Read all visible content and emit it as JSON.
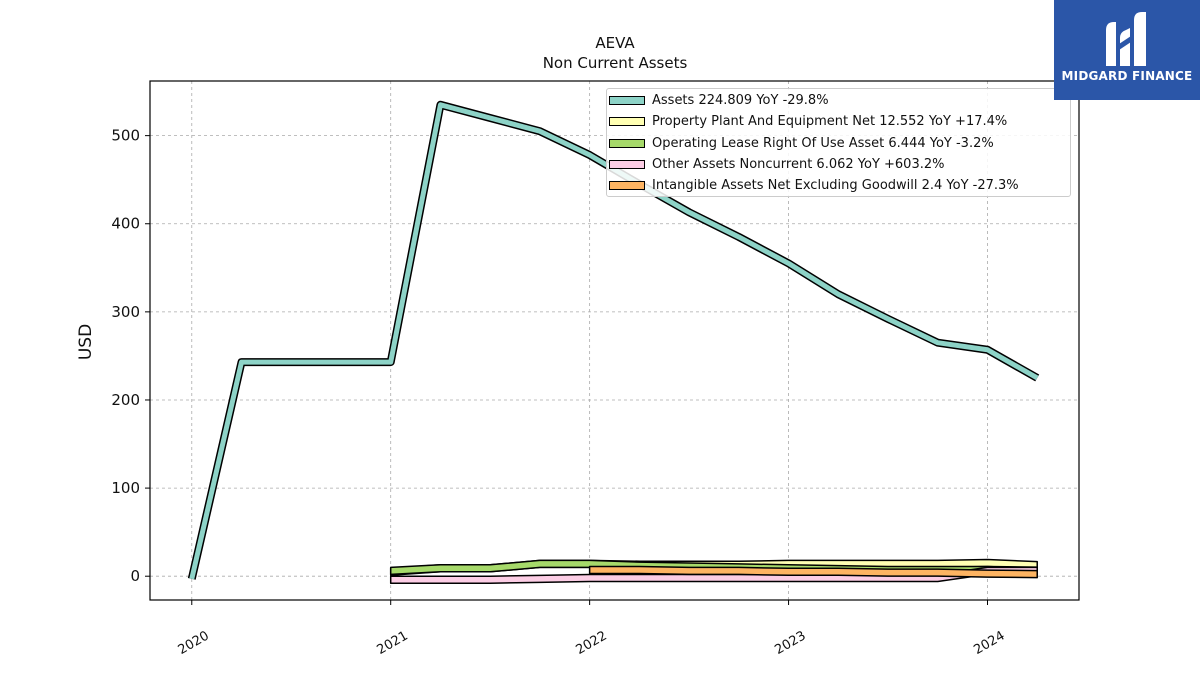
{
  "logo": {
    "text": "MIDGARD FINANCE"
  },
  "chart_data": {
    "type": "area",
    "title": "AEVA",
    "subtitle": "Non Current  Assets",
    "ylabel": "USD",
    "xlabel": "",
    "ylim": [
      -27,
      562
    ],
    "xlim": [
      2019.79,
      2024.46
    ],
    "x_ticks": [
      2020,
      2021,
      2022,
      2023,
      2024
    ],
    "x_tick_labels": [
      "2020",
      "2021",
      "2022",
      "2023",
      "2024"
    ],
    "y_ticks": [
      0,
      100,
      200,
      300,
      400,
      500
    ],
    "y_tick_labels": [
      "0",
      "100",
      "200",
      "300",
      "400",
      "500"
    ],
    "grid": true,
    "legend_position": "top-right",
    "series": [
      {
        "name": "Assets",
        "legend": "Assets  224.809 YoY -29.8%",
        "color": "#8dd3c7",
        "x": [
          2020.0,
          2020.25,
          2021.0,
          2021.25,
          2021.5,
          2021.75,
          2022.0,
          2022.25,
          2022.5,
          2022.75,
          2023.0,
          2023.25,
          2023.5,
          2023.75,
          2024.0,
          2024.25
        ],
        "y": [
          -3,
          243,
          243,
          535,
          520,
          505,
          478,
          445,
          413,
          385,
          355,
          320,
          292,
          265,
          257,
          225
        ]
      },
      {
        "name": "Property Plant And Equipment Net",
        "legend": "Property Plant And Equipment Net  12.552 YoY +17.4%",
        "color": "#ffffb3",
        "x": [
          2021.0,
          2021.25,
          2021.5,
          2021.75,
          2022.0,
          2022.25,
          2022.5,
          2022.75,
          2023.0,
          2023.25,
          2023.5,
          2023.75,
          2024.0,
          2024.25
        ],
        "y": [
          5,
          9,
          9,
          14,
          14,
          13,
          13,
          13,
          14,
          14,
          14,
          14,
          15,
          12.6
        ]
      },
      {
        "name": "Operating Lease Right Of Use Asset",
        "legend": "Operating Lease Right Of Use Asset  6.444 YoY -3.2%",
        "color": "#a6d96a",
        "x": [
          2021.0,
          2021.25,
          2021.5,
          2021.75,
          2022.0,
          2022.25,
          2022.5,
          2022.75,
          2023.0,
          2023.25,
          2023.5,
          2023.75,
          2024.0,
          2024.25
        ],
        "y": [
          6,
          9,
          9,
          14,
          14,
          12,
          11,
          10,
          9,
          8,
          7,
          7,
          7,
          6.4
        ]
      },
      {
        "name": "Other Assets Noncurrent",
        "legend": "Other Assets Noncurrent  6.062 YoY +603.2%",
        "color": "#fccde5",
        "x": [
          2021.0,
          2021.25,
          2021.5,
          2021.75,
          2022.0,
          2022.25,
          2022.5,
          2022.75,
          2023.0,
          2023.25,
          2023.5,
          2023.75,
          2024.0,
          2024.25
        ],
        "y": [
          -4,
          -4,
          -4,
          -3,
          -2,
          -2,
          -2,
          -2,
          -2,
          -2,
          -2,
          -2,
          6,
          6.1
        ]
      },
      {
        "name": "Intangible Assets Net Excluding Goodwill",
        "legend": "Intangible Assets Net Excluding Goodwill  2.4 YoY -27.3%",
        "color": "#fdb462",
        "x": [
          2022.0,
          2022.25,
          2022.5,
          2022.75,
          2023.0,
          2023.25,
          2023.5,
          2023.75,
          2024.0,
          2024.25
        ],
        "y": [
          7,
          7,
          6,
          6,
          5,
          5,
          4,
          4,
          3,
          2.4
        ]
      }
    ]
  }
}
